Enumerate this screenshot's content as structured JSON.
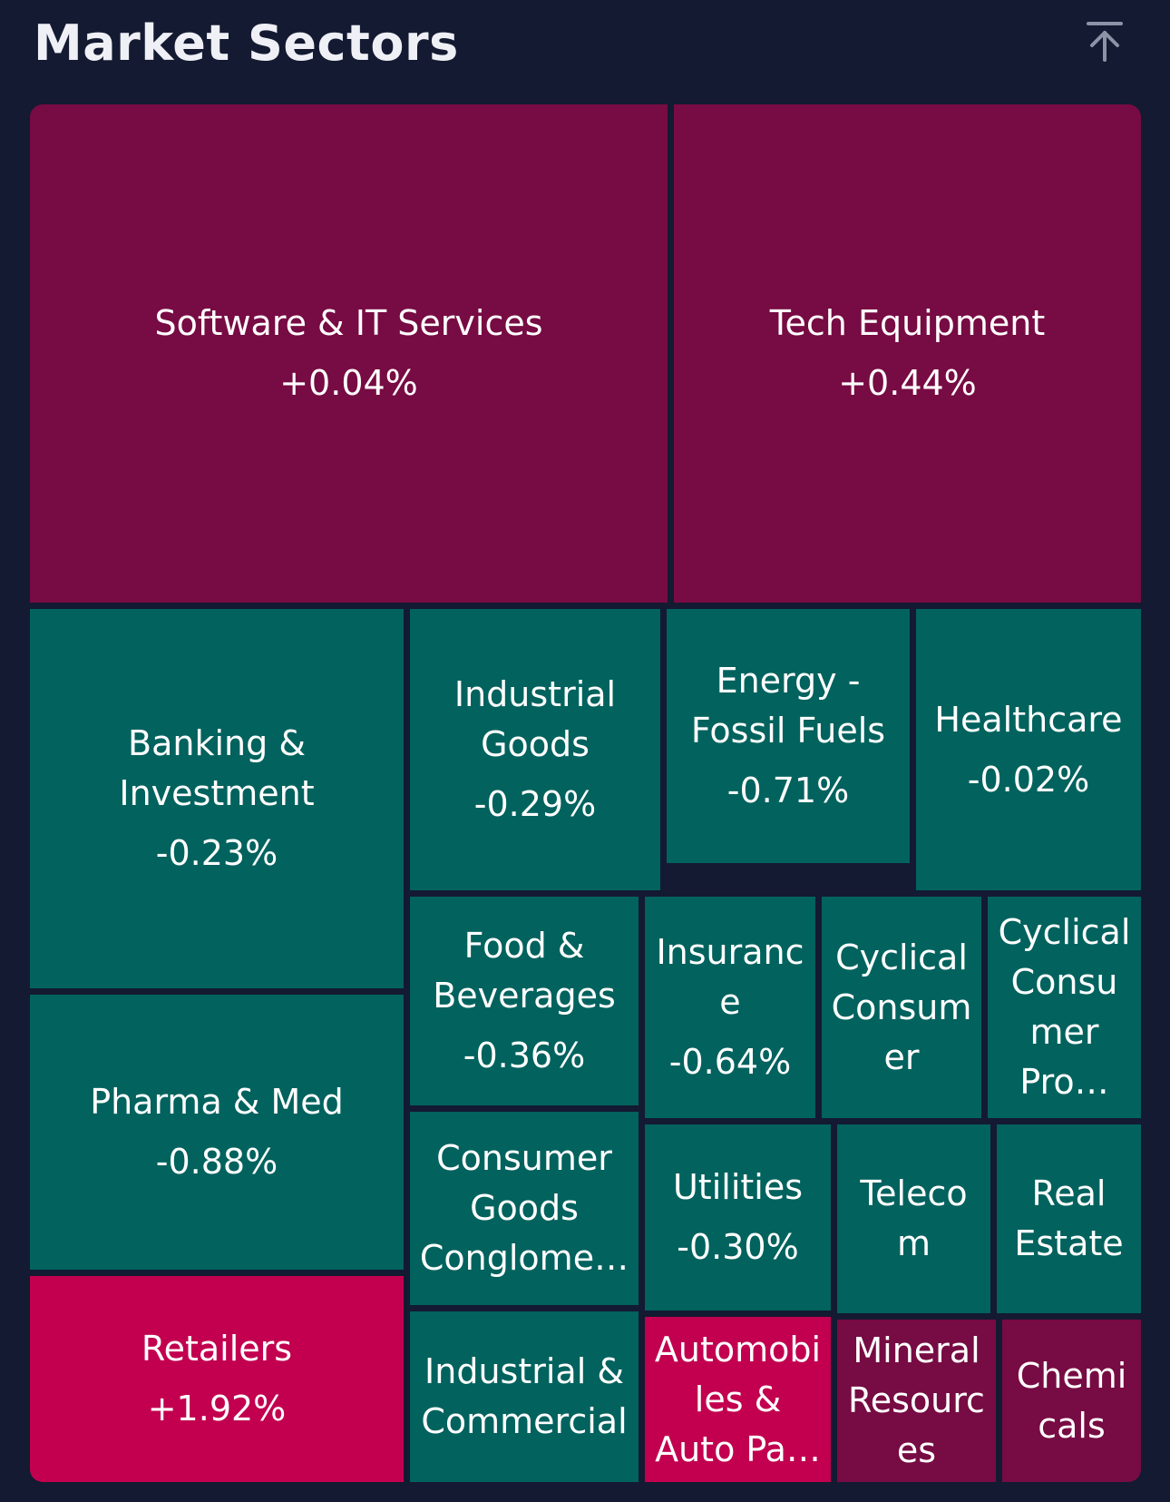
{
  "header": {
    "title": "Market Sectors",
    "scroll_top_icon": "arrow-up-to-top-icon"
  },
  "colors": {
    "background": "#131a31",
    "negative": "#02625e",
    "positive": "#770b43",
    "strong_positive": "#c2004f"
  },
  "chart_data": {
    "type": "treemap",
    "sectors": [
      {
        "name": "Software & IT Services",
        "change": "+0.04%",
        "value": 0.04
      },
      {
        "name": "Tech Equipment",
        "change": "+0.44%",
        "value": 0.44
      },
      {
        "name": "Banking & Investment",
        "change": "-0.23%",
        "value": -0.23
      },
      {
        "name": "Industrial Goods",
        "change": "-0.29%",
        "value": -0.29
      },
      {
        "name": "Energy - Fossil Fuels",
        "change": "-0.71%",
        "value": -0.71
      },
      {
        "name": "Healthcare",
        "change": "-0.02%",
        "value": -0.02
      },
      {
        "name": "Pharma & Med",
        "change": "-0.88%",
        "value": -0.88
      },
      {
        "name": "Food & Beverages",
        "change": "-0.36%",
        "value": -0.36
      },
      {
        "name": "Insurance",
        "change": "-0.64%",
        "value": -0.64
      },
      {
        "name": "Cyclical Consumer",
        "change": "",
        "value": null
      },
      {
        "name": "Cyclical Consumer Pro…",
        "change": "",
        "value": null
      },
      {
        "name": "Consumer Goods Conglome…",
        "change": "",
        "value": null
      },
      {
        "name": "Utilities",
        "change": "-0.30%",
        "value": -0.3
      },
      {
        "name": "Telecom",
        "change": "",
        "value": null
      },
      {
        "name": "Real Estate",
        "change": "",
        "value": null
      },
      {
        "name": "Retailers",
        "change": "+1.92%",
        "value": 1.92
      },
      {
        "name": "Industrial & Commercial",
        "change": "",
        "value": null
      },
      {
        "name": "Automobiles & Auto Pa…",
        "change": "",
        "value": null
      },
      {
        "name": "Mineral Resources",
        "change": "",
        "value": null
      },
      {
        "name": "Chemicals",
        "change": "",
        "value": null
      }
    ]
  }
}
